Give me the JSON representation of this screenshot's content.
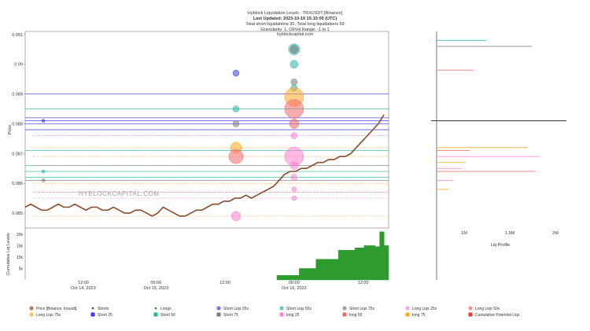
{
  "header": {
    "title": "Hyblock Liquidation Levels - TRXUSDT [Binance]",
    "updated": "Last Updated: 2023-10-16 15:10:00 (UTC)",
    "totals": "Total short liquidations 35, Total long liquidations 59",
    "granularity": "Granularity: 1, OI/Vol Range: -1 to 1",
    "site": "hyblockcapital.com"
  },
  "watermark": "HYBLOCKCAPITAL.COM",
  "colors": {
    "price": "#8b4a2b",
    "cum_fill": "#2e9b2e",
    "frame": "#555555",
    "short25": "#3a3ad9",
    "short50": "#2ab5a5",
    "short75": "#7a7a7a",
    "long25": "#ff7fd0",
    "long50": "#f06a6a",
    "long75": "#ffa726",
    "cum_potential": "#e53935"
  },
  "chart_data": [
    {
      "type": "line",
      "title": "Hyblock Liquidation Levels - TRXUSDT [Binance]",
      "ylabel": "Price",
      "ylim": [
        0.0845,
        0.0911
      ],
      "yticks": [
        "0.091",
        "0.09",
        "0.089",
        "0.088",
        "0.087",
        "0.086",
        "0.085"
      ],
      "xticks": [
        {
          "label": "12:00",
          "sub": "Oct 14, 2023"
        },
        {
          "label": "00:00",
          "sub": "Oct 15, 2023"
        },
        {
          "label": "12:00",
          "sub": ""
        },
        {
          "label": "00:00",
          "sub": "Oct 16, 2023"
        },
        {
          "label": "12:00",
          "sub": ""
        }
      ],
      "price": [
        0.0852,
        0.0853,
        0.0852,
        0.0851,
        0.0851,
        0.0852,
        0.0853,
        0.0852,
        0.0852,
        0.0853,
        0.0852,
        0.0851,
        0.0852,
        0.0852,
        0.0851,
        0.0851,
        0.0852,
        0.0851,
        0.085,
        0.085,
        0.0851,
        0.0851,
        0.085,
        0.0849,
        0.085,
        0.0852,
        0.0851,
        0.085,
        0.0849,
        0.0849,
        0.085,
        0.0851,
        0.0851,
        0.0852,
        0.0853,
        0.0853,
        0.0854,
        0.0854,
        0.0855,
        0.0855,
        0.0856,
        0.0855,
        0.0856,
        0.0857,
        0.0858,
        0.0859,
        0.0861,
        0.0863,
        0.0864,
        0.0864,
        0.0865,
        0.0865,
        0.0866,
        0.0867,
        0.0867,
        0.0868,
        0.0868,
        0.0869,
        0.0869,
        0.087,
        0.0872,
        0.0874,
        0.0876,
        0.0878,
        0.088,
        0.0883
      ],
      "short_levels": [
        {
          "price": 0.089,
          "group": "short25"
        },
        {
          "price": 0.0882,
          "group": "short25"
        },
        {
          "price": 0.0881,
          "group": "short25"
        },
        {
          "price": 0.088,
          "group": "short25"
        },
        {
          "price": 0.0878,
          "group": "short25"
        },
        {
          "price": 0.0885,
          "group": "short50"
        },
        {
          "price": 0.0871,
          "group": "short50"
        },
        {
          "price": 0.0866,
          "group": "short50"
        },
        {
          "price": 0.0864,
          "group": "short50"
        },
        {
          "price": 0.0862,
          "group": "short50"
        },
        {
          "price": 0.0861,
          "group": "short75"
        }
      ],
      "long_levels": [
        {
          "price": 0.0876,
          "group": "long25"
        },
        {
          "price": 0.0872,
          "group": "long75"
        },
        {
          "price": 0.0869,
          "group": "long75"
        },
        {
          "price": 0.0866,
          "group": "long50"
        },
        {
          "price": 0.086,
          "group": "long75"
        },
        {
          "price": 0.0857,
          "group": "long50"
        },
        {
          "price": 0.0855,
          "group": "long25"
        },
        {
          "price": 0.0849,
          "group": "long75"
        }
      ],
      "bubbles": [
        {
          "x": 0.05,
          "price": 0.0881,
          "r": 2,
          "group": "short25"
        },
        {
          "x": 0.05,
          "price": 0.0864,
          "r": 2,
          "group": "short50"
        },
        {
          "x": 0.05,
          "price": 0.0861,
          "r": 2,
          "group": "short75"
        },
        {
          "x": 0.58,
          "price": 0.0897,
          "r": 4,
          "group": "short25"
        },
        {
          "x": 0.58,
          "price": 0.0885,
          "r": 4,
          "group": "short50"
        },
        {
          "x": 0.58,
          "price": 0.088,
          "r": 4,
          "group": "short75"
        },
        {
          "x": 0.58,
          "price": 0.0872,
          "r": 7,
          "group": "long75"
        },
        {
          "x": 0.58,
          "price": 0.0869,
          "r": 9,
          "group": "long50"
        },
        {
          "x": 0.58,
          "price": 0.0849,
          "r": 6,
          "group": "long25"
        },
        {
          "x": 0.74,
          "price": 0.0905,
          "r": 7,
          "group": "short50"
        },
        {
          "x": 0.74,
          "price": 0.0905,
          "r": 5,
          "group": "short75"
        },
        {
          "x": 0.74,
          "price": 0.09,
          "r": 5,
          "group": "short50"
        },
        {
          "x": 0.74,
          "price": 0.0894,
          "r": 4,
          "group": "short75"
        },
        {
          "x": 0.74,
          "price": 0.0892,
          "r": 4,
          "group": "short50"
        },
        {
          "x": 0.74,
          "price": 0.0889,
          "r": 12,
          "group": "long75"
        },
        {
          "x": 0.74,
          "price": 0.0885,
          "r": 12,
          "group": "long50"
        },
        {
          "x": 0.74,
          "price": 0.088,
          "r": 6,
          "group": "long50"
        },
        {
          "x": 0.74,
          "price": 0.0876,
          "r": 4,
          "group": "long25"
        },
        {
          "x": 0.74,
          "price": 0.0869,
          "r": 12,
          "group": "long25"
        },
        {
          "x": 0.74,
          "price": 0.0866,
          "r": 5,
          "group": "long25"
        },
        {
          "x": 0.74,
          "price": 0.0862,
          "r": 4,
          "group": "long25"
        },
        {
          "x": 0.74,
          "price": 0.0858,
          "r": 3,
          "group": "long25"
        },
        {
          "x": 0.74,
          "price": 0.0855,
          "r": 3,
          "group": "long25"
        }
      ]
    },
    {
      "type": "area",
      "ylabel": "Cumulative Liq Levels",
      "yticks": [
        "20k",
        "15k",
        "10k",
        "5k"
      ],
      "ylim": [
        0,
        22000
      ],
      "steps": [
        {
          "t": 0.0,
          "v": 2000
        },
        {
          "t": 0.2,
          "v": 5000
        },
        {
          "t": 0.35,
          "v": 9000
        },
        {
          "t": 0.55,
          "v": 13000
        },
        {
          "t": 0.7,
          "v": 14000
        },
        {
          "t": 0.78,
          "v": 15000
        },
        {
          "t": 0.88,
          "v": 14500
        },
        {
          "t": 0.92,
          "v": 21000
        },
        {
          "t": 0.96,
          "v": 15000
        },
        {
          "t": 1.0,
          "v": 15000
        }
      ]
    },
    {
      "type": "bar",
      "xlabel": "Liq Profile",
      "xticks": [
        "1M",
        "1.5M",
        "2M"
      ],
      "current_price": 0.0881,
      "bars": [
        {
          "price": 0.0908,
          "value": 0.6,
          "group": "short50"
        },
        {
          "price": 0.0906,
          "value": 1.15,
          "group": "short75"
        },
        {
          "price": 0.0898,
          "value": 0.45,
          "group": "long50"
        },
        {
          "price": 0.0872,
          "value": 1.1,
          "group": "long75"
        },
        {
          "price": 0.0871,
          "value": 0.4,
          "group": "long50"
        },
        {
          "price": 0.0869,
          "value": 1.25,
          "group": "long25"
        },
        {
          "price": 0.0867,
          "value": 0.35,
          "group": "long75"
        },
        {
          "price": 0.0865,
          "value": 0.3,
          "group": "long25"
        },
        {
          "price": 0.0864,
          "value": 1.2,
          "group": "long50"
        },
        {
          "price": 0.0861,
          "value": 0.2,
          "group": "long25"
        },
        {
          "price": 0.0858,
          "value": 0.15,
          "group": "long75"
        }
      ]
    }
  ],
  "legend": [
    {
      "label": "Price [Binance, trxusdt]",
      "color": "#8b4a2b"
    },
    {
      "label": "Shorts",
      "color": "#444444"
    },
    {
      "label": "Longs",
      "color": "#2e7d32"
    },
    {
      "label": "Short Liqs 25x",
      "color": "#3a3ad9"
    },
    {
      "label": "Short Liqs 50x",
      "color": "#2ab5a5"
    },
    {
      "label": "Short Liqs 75x",
      "color": "#7a7a7a"
    },
    {
      "label": "Long Liqs 25x",
      "color": "#ff7fd0"
    },
    {
      "label": "Long Liqs 50x",
      "color": "#f06a6a"
    },
    {
      "label": "Long Liqs 75x",
      "color": "#ffa726"
    },
    {
      "label": "Short 25",
      "color": "#3a3ad9"
    },
    {
      "label": "Short 50",
      "color": "#2ab5a5"
    },
    {
      "label": "Short 75",
      "color": "#7a7a7a"
    },
    {
      "label": "long 25",
      "color": "#ff7fd0"
    },
    {
      "label": "long 50",
      "color": "#f06a6a"
    },
    {
      "label": "long 75",
      "color": "#ffa726"
    },
    {
      "label": "Cumulative Potential Liqs",
      "color": "#e53935"
    }
  ]
}
